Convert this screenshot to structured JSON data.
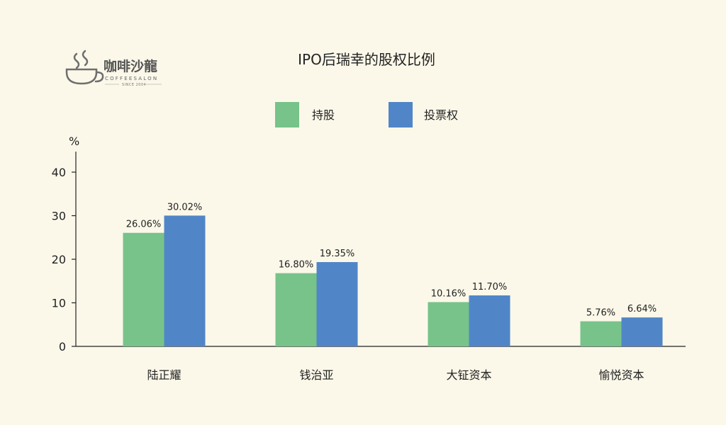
{
  "logo": {
    "name": "咖啡沙龍",
    "sub": "COFFEESALON",
    "since": "SINCE 2004",
    "icon": "coffee-cup-icon"
  },
  "chart_data": {
    "type": "bar",
    "title": "IPO后瑞幸的股权比例",
    "ylabel": "%",
    "xlabel": "",
    "ylim": [
      0,
      40
    ],
    "yticks": [
      0,
      10,
      20,
      30,
      40
    ],
    "categories": [
      "陆正耀",
      "钱治亚",
      "大钲资本",
      "愉悦资本"
    ],
    "series": [
      {
        "name": "持股",
        "color": "#77c38a",
        "values": [
          26.06,
          16.8,
          10.16,
          5.76
        ],
        "labels": [
          "26.06%",
          "16.80%",
          "10.16%",
          "5.76%"
        ]
      },
      {
        "name": "投票权",
        "color": "#5086c8",
        "values": [
          30.02,
          19.35,
          11.7,
          6.64
        ],
        "labels": [
          "30.02%",
          "19.35%",
          "11.70%",
          "6.64%"
        ]
      }
    ],
    "legend": "top-center",
    "grid": false
  }
}
